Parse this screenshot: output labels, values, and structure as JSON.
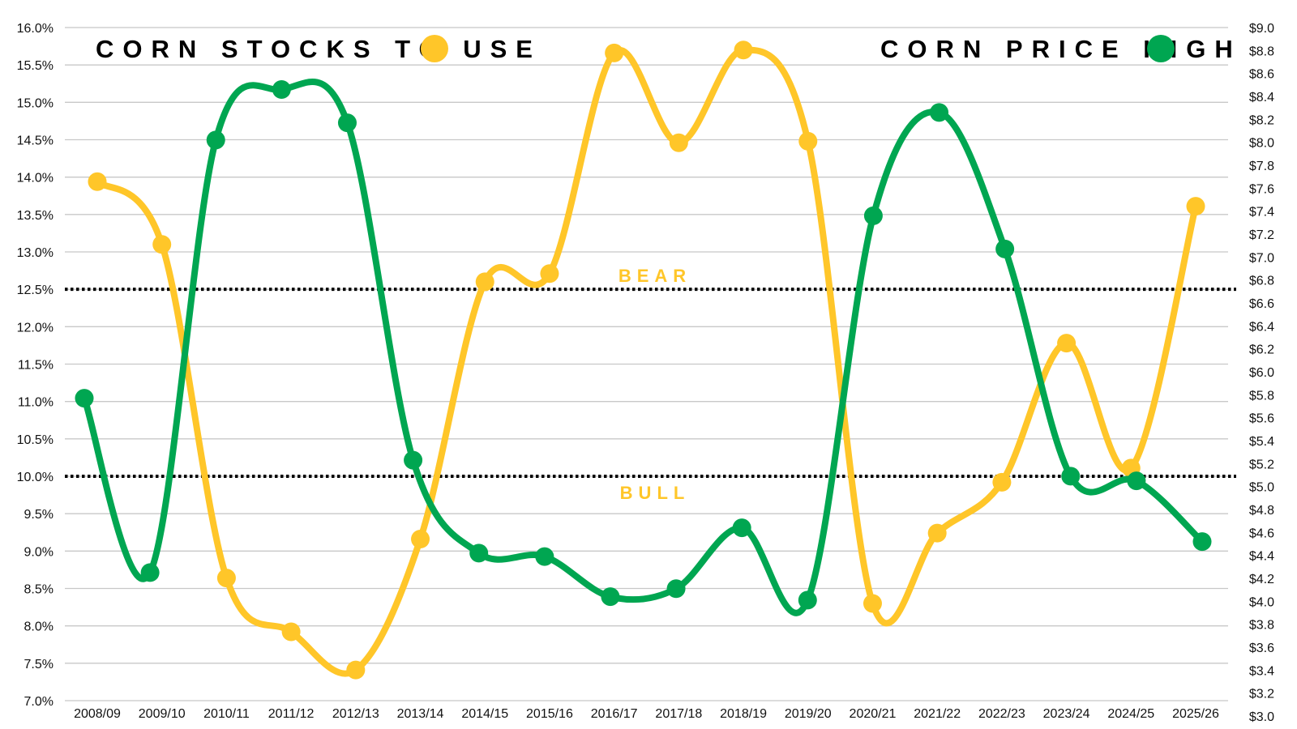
{
  "chart_data": {
    "type": "line",
    "categories": [
      "2008/09",
      "2009/10",
      "2010/11",
      "2011/12",
      "2012/13",
      "2013/14",
      "2014/15",
      "2015/16",
      "2016/17",
      "2017/18",
      "2018/19",
      "2019/20",
      "2020/21",
      "2021/22",
      "2022/23",
      "2023/24",
      "2024/25",
      "2025/26"
    ],
    "series": [
      {
        "name": "CORN STOCKS TO USE",
        "axis": "left",
        "color": "#FFC629",
        "values": [
          13.94,
          13.1,
          8.64,
          7.92,
          7.41,
          9.16,
          12.6,
          12.71,
          15.66,
          14.46,
          15.7,
          14.48,
          8.3,
          9.24,
          9.92,
          11.78,
          10.11,
          13.61
        ]
      },
      {
        "name": "CORN PRICE HIGH",
        "axis": "right",
        "color": "#00A651",
        "values": [
          5.77,
          4.25,
          8.02,
          8.46,
          8.17,
          5.23,
          4.42,
          4.39,
          4.04,
          4.11,
          4.64,
          4.01,
          7.36,
          8.26,
          7.07,
          5.09,
          5.05,
          4.52
        ]
      }
    ],
    "y_left": {
      "range": [
        7.0,
        16.0
      ],
      "step": 0.5,
      "format": "percent",
      "tick_labels": [
        "7.0%",
        "7.5%",
        "8.0%",
        "8.5%",
        "9.0%",
        "9.5%",
        "10.0%",
        "10.5%",
        "11.0%",
        "11.5%",
        "12.0%",
        "12.5%",
        "13.0%",
        "13.5%",
        "14.0%",
        "14.5%",
        "15.0%",
        "15.5%",
        "16.0%"
      ]
    },
    "y_right": {
      "range": [
        3.0,
        9.0
      ],
      "step": 0.2,
      "format": "dollar",
      "tick_labels": [
        "$3.0",
        "$3.2",
        "$3.4",
        "$3.6",
        "$3.8",
        "$4.0",
        "$4.2",
        "$4.4",
        "$4.6",
        "$4.8",
        "$5.0",
        "$5.2",
        "$5.4",
        "$5.6",
        "$5.8",
        "$6.0",
        "$6.2",
        "$6.4",
        "$6.6",
        "$6.8",
        "$7.0",
        "$7.2",
        "$7.4",
        "$7.6",
        "$7.8",
        "$8.0",
        "$8.2",
        "$8.4",
        "$8.6",
        "$8.8",
        "$9.0"
      ]
    },
    "reference_lines": [
      {
        "value": 12.5,
        "axis": "left",
        "label": "BEAR",
        "label_position": "above",
        "style": "dotted",
        "color": "#000000"
      },
      {
        "value": 10.0,
        "axis": "left",
        "label": "BULL",
        "label_position": "below",
        "style": "dotted",
        "color": "#000000"
      }
    ],
    "grid": true,
    "legend_placement": "top",
    "title": "",
    "xlabel": "",
    "ylabel": ""
  }
}
